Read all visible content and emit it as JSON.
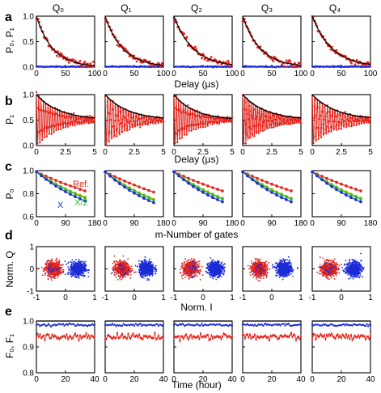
{
  "figure": {
    "columns": [
      "Q₀",
      "Q₁",
      "Q₂",
      "Q₃",
      "Q₄"
    ],
    "colors": {
      "red": "#e3231b",
      "blue": "#1d2bd6",
      "yellow": "#cbb322",
      "green": "#2bbf2b",
      "black": "#000000"
    }
  },
  "chart_data": [
    {
      "panel": "a",
      "type": "scatter",
      "ylabel": "P₀, P₁",
      "xlabel": "Delay (μs)",
      "xlim": [
        0,
        100
      ],
      "ylim": [
        0,
        1.0
      ],
      "xticks": [
        "0",
        "50",
        "100"
      ],
      "yticks": [
        "0.0",
        "0.5",
        "1.0"
      ],
      "series": [
        {
          "color": "red",
          "kind": "points+fit",
          "model": "exp_decay",
          "amp": 1.0,
          "T1_us": [
            28,
            30,
            33,
            30,
            34
          ],
          "offset": 0
        },
        {
          "color": "blue",
          "kind": "points",
          "model": "flat",
          "level": 0.01
        }
      ]
    },
    {
      "panel": "b",
      "type": "line",
      "ylabel": "P₁",
      "xlabel": "Delay (μs)",
      "xlim": [
        0,
        5
      ],
      "ylim": [
        0,
        1.0
      ],
      "xticks": [
        "0",
        "2.5",
        "5"
      ],
      "yticks": [
        "0.0",
        "0.5",
        "1.0"
      ],
      "series": [
        {
          "color": "red",
          "kind": "points+fit",
          "model": "ramsey",
          "freq_MHz": [
            5.0,
            4.5,
            5.0,
            5.5,
            4.6
          ],
          "T2_us": [
            2.0,
            2.0,
            1.8,
            2.0,
            2.1
          ],
          "offset": 0.5
        },
        {
          "color": "black",
          "kind": "envelope",
          "model": "exp_envelope"
        }
      ]
    },
    {
      "panel": "c",
      "type": "line",
      "ylabel": "P₀",
      "xlabel": "m-Number of gates",
      "xlim": [
        0,
        180
      ],
      "ylim": [
        0.6,
        1.0
      ],
      "xticks": [
        "0",
        "90",
        "180"
      ],
      "yticks": [
        "0.6",
        "0.8",
        "1.0"
      ],
      "annotations": [
        {
          "text": "Ref.",
          "color": "red"
        },
        {
          "text": "X/2",
          "color": "green"
        },
        {
          "text": "X",
          "color": "blue"
        }
      ],
      "x_points": [
        0,
        15,
        30,
        45,
        60,
        75,
        90,
        105,
        120,
        135,
        150
      ],
      "series": [
        {
          "name": "Ref.",
          "color": "red",
          "decay_per_gate": [
            0.00125,
            0.00135,
            0.00125,
            0.00125,
            0.00125
          ]
        },
        {
          "name": "X/2",
          "color": "yellow",
          "decay_per_gate": [
            0.0018,
            0.002,
            0.0019,
            0.0019,
            0.0019
          ]
        },
        {
          "name": "X/2",
          "color": "green",
          "decay_per_gate": [
            0.0019,
            0.0021,
            0.002,
            0.002,
            0.002
          ]
        },
        {
          "name": "X",
          "color": "blue",
          "decay_per_gate": [
            0.0022,
            0.0024,
            0.0023,
            0.0023,
            0.0023
          ]
        }
      ]
    },
    {
      "panel": "d",
      "type": "scatter",
      "ylabel": "Norm. Q",
      "xlabel": "Norm. I",
      "xlim": [
        -1.3,
        1.3
      ],
      "ylim": [
        -1.3,
        1.3
      ],
      "xticks": [
        "-1",
        "0",
        "1"
      ],
      "yticks": [
        "-1",
        "0",
        "1"
      ],
      "series": [
        {
          "color": "red",
          "center": [
            -0.55,
            0.0
          ],
          "spread": 0.28
        },
        {
          "color": "blue",
          "center": [
            0.55,
            0.0
          ],
          "spread": 0.28
        }
      ]
    },
    {
      "panel": "e",
      "type": "line",
      "ylabel": "F₀, F₁",
      "xlabel": "Time (hour)",
      "xlim": [
        0,
        40
      ],
      "ylim": [
        0.8,
        1.0
      ],
      "xticks": [
        "0",
        "20",
        "40"
      ],
      "yticks": [
        "0.8",
        "0.9",
        "1.0"
      ],
      "series": [
        {
          "color": "blue",
          "level": 0.985
        },
        {
          "color": "red",
          "level": 0.94
        }
      ]
    }
  ]
}
